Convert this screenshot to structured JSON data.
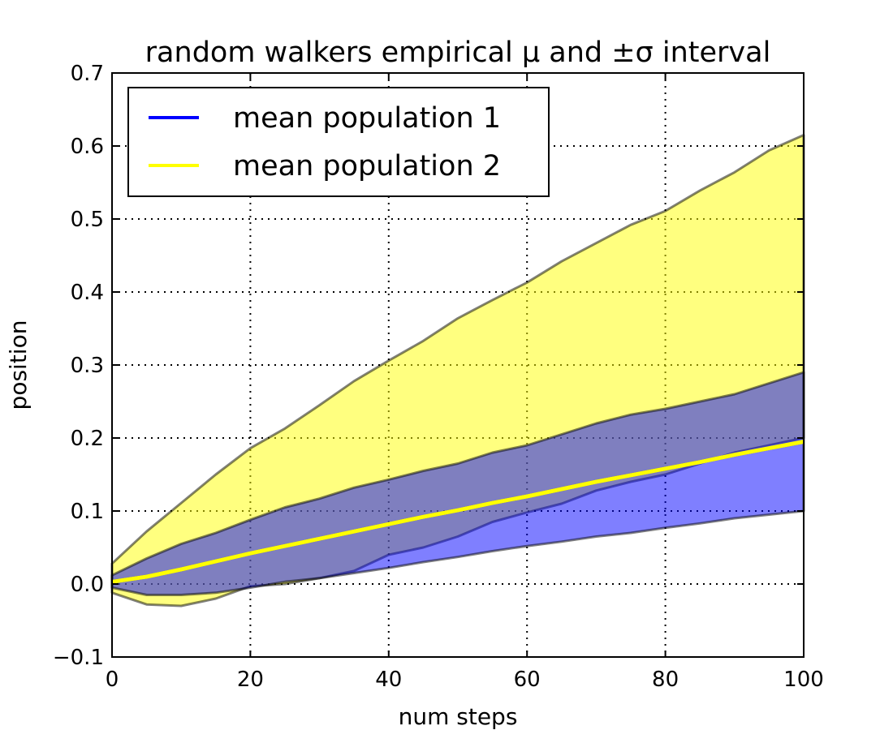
{
  "chart_data": {
    "type": "area",
    "title": "random walkers empirical μ and ±σ interval",
    "xlabel": "num steps",
    "ylabel": "position",
    "xlim": [
      0,
      100
    ],
    "ylim": [
      -0.1,
      0.7
    ],
    "grid": true,
    "legend_placement": "top-left",
    "xticks": [
      0,
      20,
      40,
      60,
      80,
      100
    ],
    "xtick_labels": [
      "0",
      "20",
      "40",
      "60",
      "80",
      "100"
    ],
    "yticks": [
      -0.1,
      0.0,
      0.1,
      0.2,
      0.3,
      0.4,
      0.5,
      0.6,
      0.7
    ],
    "ytick_labels": [
      "−0.1",
      "0.0",
      "0.1",
      "0.2",
      "0.3",
      "0.4",
      "0.5",
      "0.6",
      "0.7"
    ],
    "x": [
      0,
      5,
      10,
      15,
      20,
      25,
      30,
      35,
      40,
      45,
      50,
      55,
      60,
      65,
      70,
      75,
      80,
      85,
      90,
      95,
      100
    ],
    "bands": [
      {
        "name": "population 2 interval",
        "color": "#ffff00",
        "upper": [
          0.028,
          0.072,
          0.111,
          0.15,
          0.186,
          0.213,
          0.245,
          0.278,
          0.306,
          0.333,
          0.364,
          0.389,
          0.413,
          0.442,
          0.467,
          0.492,
          0.511,
          0.539,
          0.564,
          0.594,
          0.615
        ],
        "lower": [
          -0.012,
          -0.028,
          -0.03,
          -0.02,
          -0.003,
          0.0,
          0.008,
          0.018,
          0.04,
          0.05,
          0.065,
          0.085,
          0.098,
          0.11,
          0.128,
          0.14,
          0.15,
          0.165,
          0.18,
          0.19,
          0.2
        ]
      },
      {
        "name": "population 1 interval",
        "color": "#0000ff",
        "upper": [
          0.012,
          0.035,
          0.055,
          0.07,
          0.088,
          0.105,
          0.117,
          0.132,
          0.143,
          0.155,
          0.165,
          0.18,
          0.19,
          0.205,
          0.22,
          0.232,
          0.24,
          0.25,
          0.26,
          0.275,
          0.29
        ],
        "lower": [
          -0.005,
          -0.015,
          -0.015,
          -0.012,
          -0.005,
          0.003,
          0.008,
          0.015,
          0.022,
          0.03,
          0.037,
          0.045,
          0.052,
          0.058,
          0.065,
          0.07,
          0.077,
          0.083,
          0.09,
          0.095,
          0.1
        ]
      }
    ],
    "series": [
      {
        "name": "mean population 1",
        "color": "#0000ff",
        "values": [
          0.003,
          0.01,
          0.02,
          0.031,
          0.042,
          0.052,
          0.062,
          0.072,
          0.082,
          0.092,
          0.101,
          0.111,
          0.12,
          0.13,
          0.14,
          0.149,
          0.158,
          0.167,
          0.177,
          0.186,
          0.195
        ]
      },
      {
        "name": "mean population 2",
        "color": "#ffff00",
        "values": [
          0.003,
          0.01,
          0.02,
          0.031,
          0.042,
          0.052,
          0.062,
          0.072,
          0.082,
          0.092,
          0.101,
          0.111,
          0.12,
          0.13,
          0.14,
          0.149,
          0.158,
          0.167,
          0.177,
          0.186,
          0.195
        ]
      }
    ]
  }
}
